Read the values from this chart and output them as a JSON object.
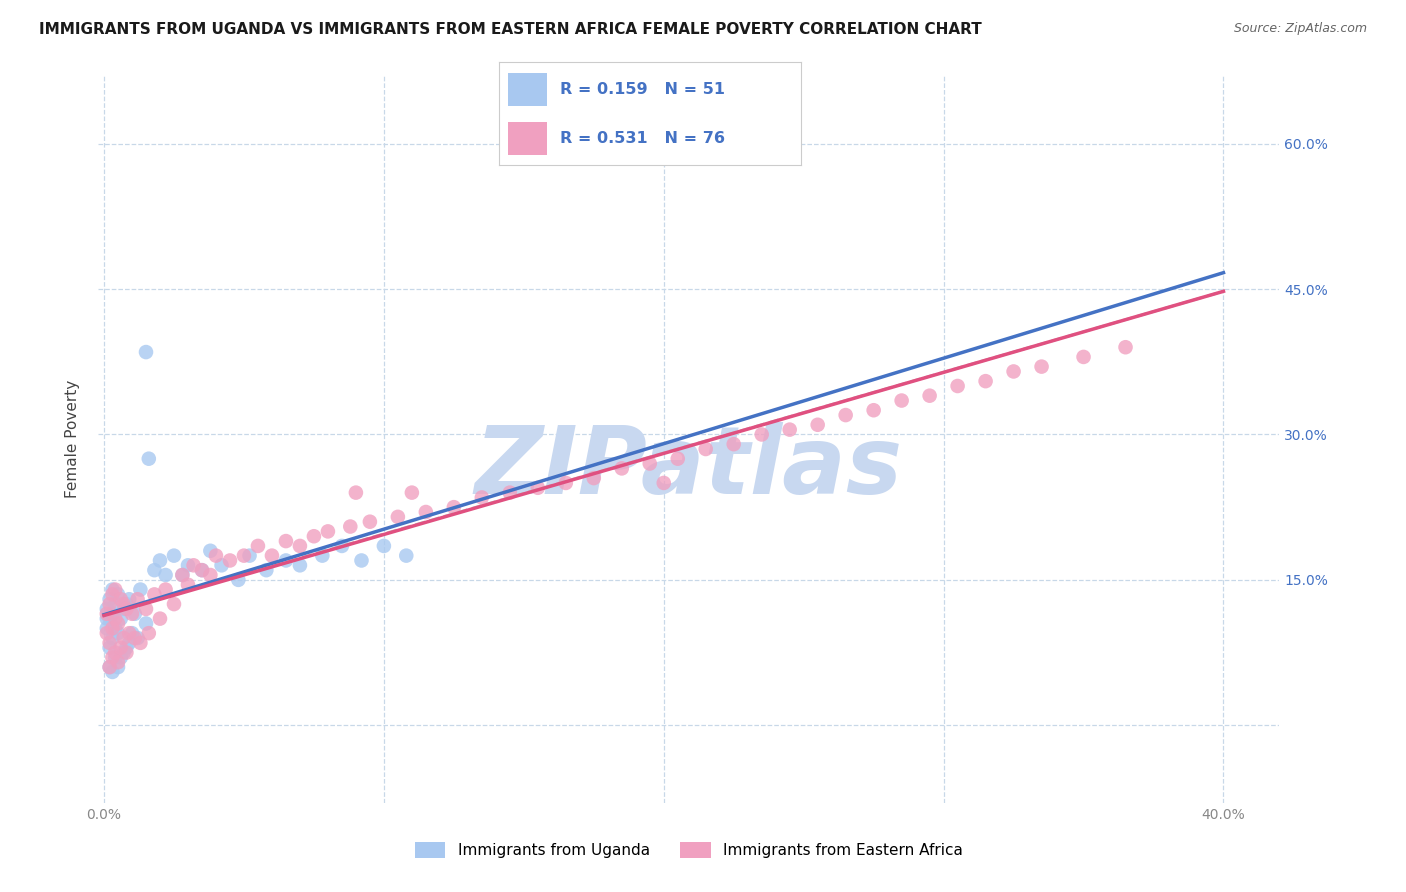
{
  "title": "IMMIGRANTS FROM UGANDA VS IMMIGRANTS FROM EASTERN AFRICA FEMALE POVERTY CORRELATION CHART",
  "source": "Source: ZipAtlas.com",
  "ylabel": "Female Poverty",
  "xlim": [
    -0.002,
    0.42
  ],
  "ylim": [
    -0.08,
    0.67
  ],
  "y_ticks": [
    0.0,
    0.15,
    0.3,
    0.45,
    0.6
  ],
  "y_tick_labels_right": [
    "",
    "15.0%",
    "30.0%",
    "45.0%",
    "60.0%"
  ],
  "x_ticks": [
    0.0,
    0.1,
    0.2,
    0.3,
    0.4
  ],
  "x_tick_labels": [
    "0.0%",
    "",
    "",
    "",
    "40.0%"
  ],
  "uganda_R": 0.159,
  "uganda_N": 51,
  "eastern_R": 0.531,
  "eastern_N": 76,
  "scatter_color_uganda": "#A8C8F0",
  "scatter_color_eastern": "#F0A0C0",
  "line_color_uganda": "#4472C4",
  "line_color_eastern": "#E05080",
  "line_color_combined": "#C0C0C0",
  "watermark_color": "#C8D8F0",
  "watermark_text": "ZIPatlas",
  "legend_label_uganda": "Immigrants from Uganda",
  "legend_label_eastern": "Immigrants from Eastern Africa",
  "legend_text_color": "#4472C4",
  "background_color": "#FFFFFF",
  "grid_color": "#C8D8E8",
  "grid_style": "--",
  "title_fontsize": 11,
  "source_fontsize": 9,
  "axis_label_color": "#4472C4",
  "tick_color": "#888888",
  "uganda_x": [
    0.001,
    0.001,
    0.001,
    0.002,
    0.002,
    0.002,
    0.002,
    0.003,
    0.003,
    0.003,
    0.003,
    0.004,
    0.004,
    0.004,
    0.005,
    0.005,
    0.005,
    0.006,
    0.006,
    0.007,
    0.007,
    0.008,
    0.008,
    0.009,
    0.009,
    0.01,
    0.011,
    0.012,
    0.013,
    0.015,
    0.016,
    0.018,
    0.02,
    0.022,
    0.025,
    0.028,
    0.03,
    0.035,
    0.038,
    0.042,
    0.048,
    0.052,
    0.058,
    0.065,
    0.07,
    0.078,
    0.085,
    0.092,
    0.1,
    0.108,
    0.015
  ],
  "uganda_y": [
    0.1,
    0.11,
    0.12,
    0.06,
    0.08,
    0.11,
    0.13,
    0.055,
    0.09,
    0.115,
    0.14,
    0.07,
    0.1,
    0.125,
    0.06,
    0.095,
    0.135,
    0.07,
    0.11,
    0.075,
    0.12,
    0.08,
    0.125,
    0.085,
    0.13,
    0.095,
    0.115,
    0.09,
    0.14,
    0.105,
    0.275,
    0.16,
    0.17,
    0.155,
    0.175,
    0.155,
    0.165,
    0.16,
    0.18,
    0.165,
    0.15,
    0.175,
    0.16,
    0.17,
    0.165,
    0.175,
    0.185,
    0.17,
    0.185,
    0.175,
    0.385
  ],
  "eastern_x": [
    0.001,
    0.001,
    0.002,
    0.002,
    0.002,
    0.003,
    0.003,
    0.003,
    0.004,
    0.004,
    0.004,
    0.005,
    0.005,
    0.006,
    0.006,
    0.007,
    0.007,
    0.008,
    0.008,
    0.009,
    0.01,
    0.011,
    0.012,
    0.013,
    0.015,
    0.016,
    0.018,
    0.02,
    0.022,
    0.025,
    0.028,
    0.03,
    0.032,
    0.035,
    0.038,
    0.04,
    0.045,
    0.05,
    0.055,
    0.06,
    0.065,
    0.07,
    0.075,
    0.08,
    0.088,
    0.095,
    0.105,
    0.115,
    0.125,
    0.135,
    0.145,
    0.155,
    0.165,
    0.175,
    0.185,
    0.195,
    0.205,
    0.215,
    0.225,
    0.235,
    0.245,
    0.255,
    0.265,
    0.275,
    0.285,
    0.295,
    0.305,
    0.315,
    0.325,
    0.335,
    0.35,
    0.365,
    0.2,
    0.11,
    0.09,
    0.175
  ],
  "eastern_y": [
    0.095,
    0.115,
    0.06,
    0.085,
    0.125,
    0.07,
    0.1,
    0.135,
    0.075,
    0.11,
    0.14,
    0.065,
    0.105,
    0.08,
    0.13,
    0.09,
    0.125,
    0.075,
    0.12,
    0.095,
    0.115,
    0.09,
    0.13,
    0.085,
    0.12,
    0.095,
    0.135,
    0.11,
    0.14,
    0.125,
    0.155,
    0.145,
    0.165,
    0.16,
    0.155,
    0.175,
    0.17,
    0.175,
    0.185,
    0.175,
    0.19,
    0.185,
    0.195,
    0.2,
    0.205,
    0.21,
    0.215,
    0.22,
    0.225,
    0.235,
    0.24,
    0.245,
    0.25,
    0.255,
    0.265,
    0.27,
    0.275,
    0.285,
    0.29,
    0.3,
    0.305,
    0.31,
    0.32,
    0.325,
    0.335,
    0.34,
    0.35,
    0.355,
    0.365,
    0.37,
    0.38,
    0.39,
    0.25,
    0.24,
    0.24,
    0.62
  ]
}
